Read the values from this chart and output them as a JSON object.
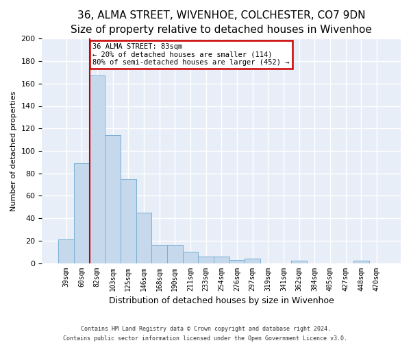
{
  "title": "36, ALMA STREET, WIVENHOE, COLCHESTER, CO7 9DN",
  "subtitle": "Size of property relative to detached houses in Wivenhoe",
  "xlabel": "Distribution of detached houses by size in Wivenhoe",
  "ylabel": "Number of detached properties",
  "bin_labels": [
    "39sqm",
    "60sqm",
    "82sqm",
    "103sqm",
    "125sqm",
    "146sqm",
    "168sqm",
    "190sqm",
    "211sqm",
    "233sqm",
    "254sqm",
    "276sqm",
    "297sqm",
    "319sqm",
    "341sqm",
    "362sqm",
    "384sqm",
    "405sqm",
    "427sqm",
    "448sqm",
    "470sqm"
  ],
  "bar_heights": [
    21,
    89,
    167,
    114,
    75,
    45,
    16,
    16,
    10,
    6,
    6,
    3,
    4,
    0,
    0,
    2,
    0,
    0,
    0,
    2,
    0
  ],
  "bar_color": "#c6d9ec",
  "bar_edge_color": "#7aafd4",
  "vline_x_index": 2,
  "vline_color": "#cc0000",
  "annotation_title": "36 ALMA STREET: 83sqm",
  "annotation_line1": "← 20% of detached houses are smaller (114)",
  "annotation_line2": "80% of semi-detached houses are larger (452) →",
  "annotation_box_color": "#cc0000",
  "ylim": [
    0,
    200
  ],
  "yticks": [
    0,
    20,
    40,
    60,
    80,
    100,
    120,
    140,
    160,
    180,
    200
  ],
  "footnote1": "Contains HM Land Registry data © Crown copyright and database right 2024.",
  "footnote2": "Contains public sector information licensed under the Open Government Licence v3.0.",
  "bg_color": "#ffffff",
  "plot_bg_color": "#e8eef8",
  "grid_color": "#ffffff",
  "title_fontsize": 11,
  "subtitle_fontsize": 9
}
